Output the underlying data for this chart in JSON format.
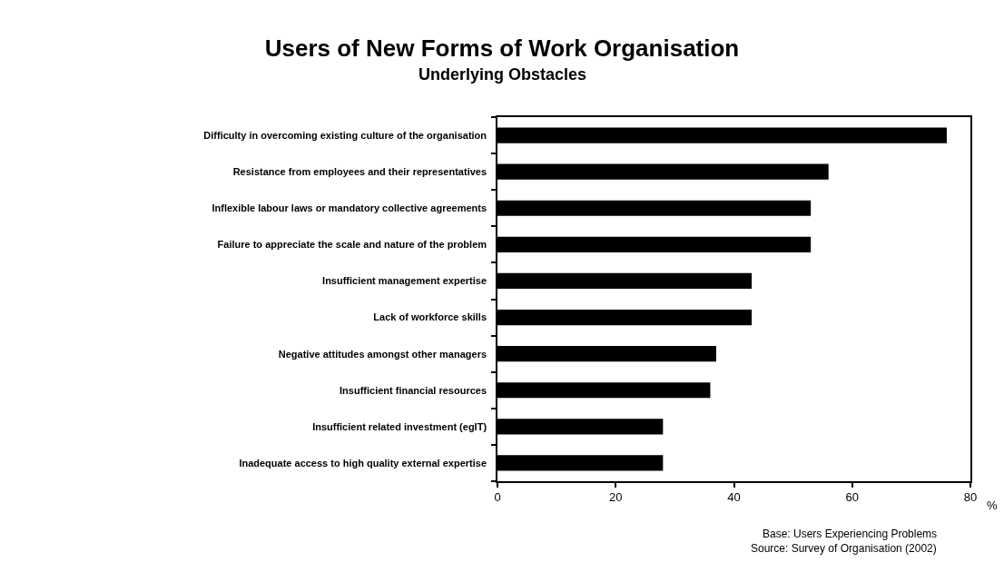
{
  "chart_data": {
    "type": "bar",
    "orientation": "horizontal",
    "title": "Users of New Forms of Work Organisation",
    "subtitle": "Underlying Obstacles",
    "xlabel": "%",
    "categories": [
      "Difficulty in overcoming existing culture of the organisation",
      "Resistance from employees and their representatives",
      "Inflexible labour laws or mandatory collective agreements",
      "Failure to appreciate the scale and nature of the problem",
      "Insufficient management expertise",
      "Lack of workforce skills",
      "Negative attitudes amongst other managers",
      "Insufficient financial resources",
      "Insufficient related investment (egIT)",
      "Inadequate access to high quality external expertise"
    ],
    "values": [
      76,
      56,
      53,
      53,
      43,
      43,
      37,
      36,
      28,
      28
    ],
    "color": "#000000",
    "xlim": [
      0,
      80
    ],
    "xticks": [
      0,
      20,
      40,
      60,
      80
    ],
    "annotations": [
      "Base: Users Experiencing Problems",
      "Source: Survey of Organisation (2002)"
    ]
  }
}
